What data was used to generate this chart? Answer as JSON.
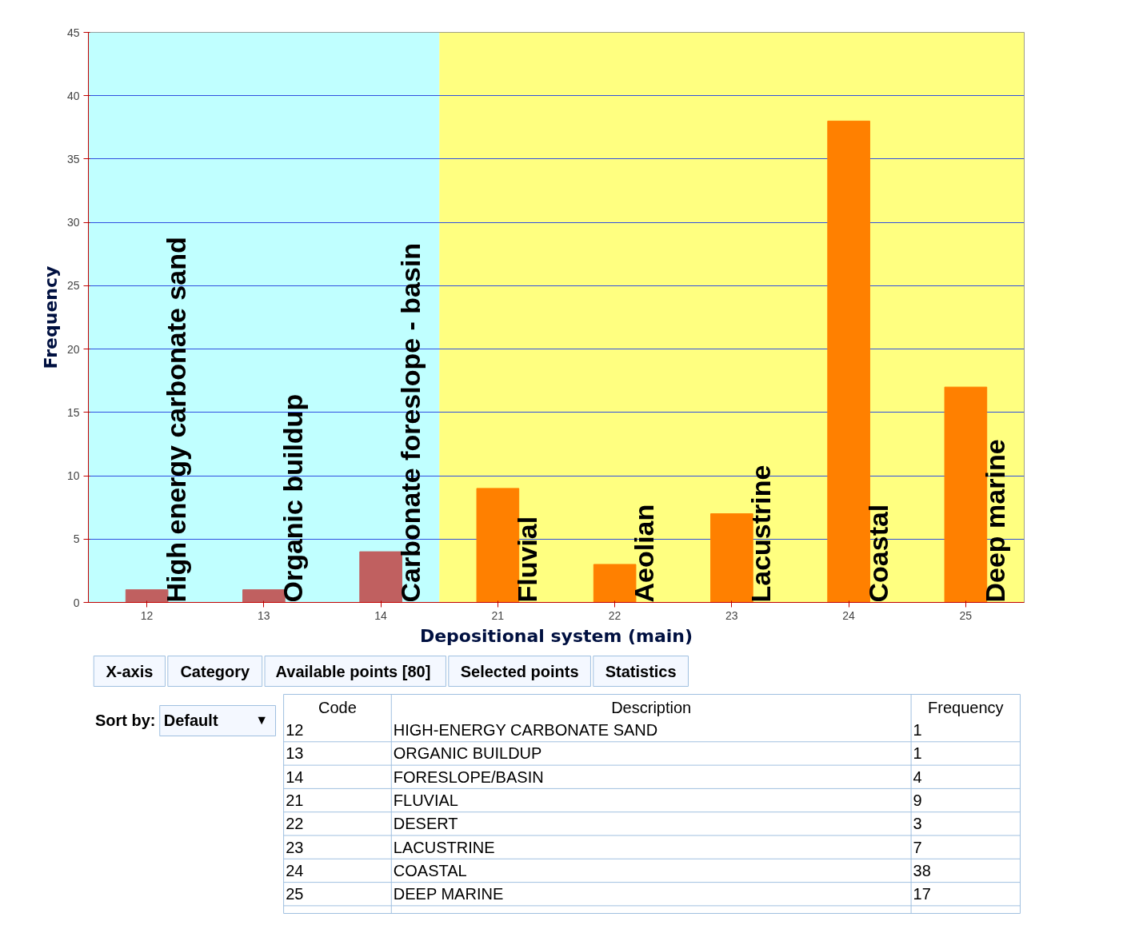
{
  "chart_data": {
    "type": "bar",
    "categories": [
      "12",
      "13",
      "14",
      "21",
      "22",
      "23",
      "24",
      "25"
    ],
    "values": [
      1,
      1,
      4,
      9,
      3,
      7,
      38,
      17
    ],
    "colors": [
      "#c06060",
      "#c06060",
      "#c06060",
      "#ff8000",
      "#ff8000",
      "#ff8000",
      "#ff8000",
      "#ff8000"
    ],
    "xlabel": "Depositional system (main)",
    "ylabel": "Frequency",
    "ylim": [
      0,
      45
    ],
    "yticks": [
      0,
      5,
      10,
      15,
      20,
      25,
      30,
      35,
      40,
      45
    ],
    "grid": "y",
    "bands": [
      {
        "axis": "x",
        "from": "12",
        "to": "14",
        "color": "#c0ffff"
      },
      {
        "axis": "x",
        "from": "21",
        "to": "25",
        "color": "#ffff80"
      }
    ],
    "annotations": [
      {
        "text": "High energy carbonate sand",
        "x": "12",
        "y": 0
      },
      {
        "text": "Organic buildup",
        "x": "13",
        "y": 0
      },
      {
        "text": "Carbonate foreslope - basin",
        "x": "14",
        "y": 0
      },
      {
        "text": "Fluvial",
        "x": "21",
        "y": 0
      },
      {
        "text": "Aeolian",
        "x": "22",
        "y": 0
      },
      {
        "text": "Lacustrine",
        "x": "23",
        "y": 0
      },
      {
        "text": "Coastal",
        "x": "24",
        "y": 0
      },
      {
        "text": "Deep marine",
        "x": "25",
        "y": 0
      },
      "X-axis",
      "Category",
      "Available  points [80]",
      "Selected points",
      "Statistics",
      "Sort by:",
      "Default",
      "▼",
      "Code",
      "Description",
      "Frequency",
      "HIGH-ENERGY CARBONATE SAND",
      "ORGANIC BUILDUP",
      "FORESLOPE/BASIN",
      "FLUVIAL",
      "DESERT",
      "LACUSTRINE",
      "COASTAL",
      "DEEP MARINE",
      "1",
      "1",
      "4",
      "9",
      "3",
      "7",
      "38",
      "17"
    ]
  }
}
